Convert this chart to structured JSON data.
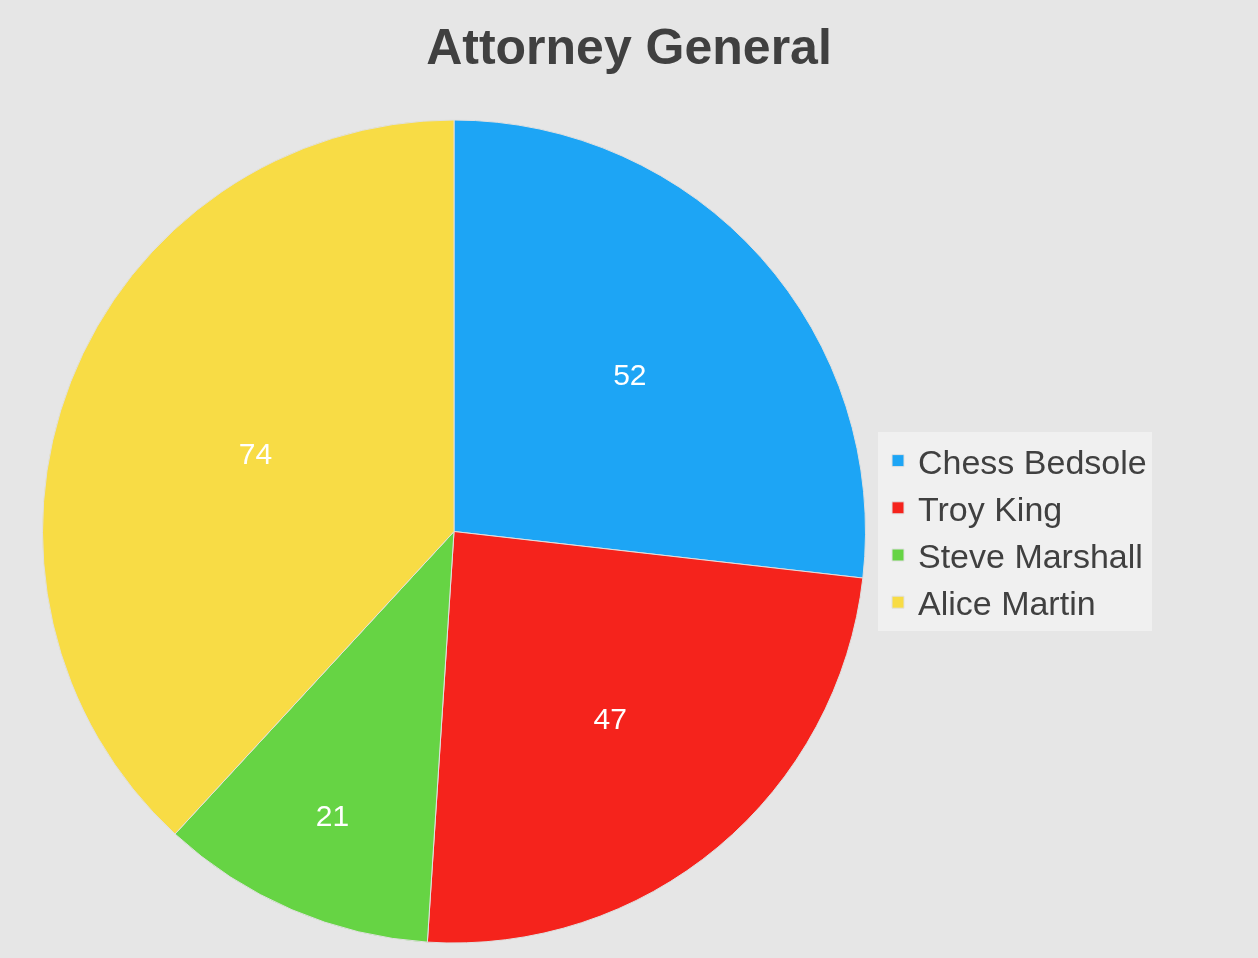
{
  "chart_data": {
    "type": "pie",
    "title": "Attorney General",
    "categories": [
      "Chess Bedsole",
      "Troy King",
      "Steve Marshall",
      "Alice Martin"
    ],
    "values": [
      52,
      47,
      21,
      74
    ],
    "colors": [
      "#1da5f5",
      "#f5231c",
      "#66d444",
      "#f8dc45"
    ],
    "data_labels": true,
    "legend": "right"
  }
}
